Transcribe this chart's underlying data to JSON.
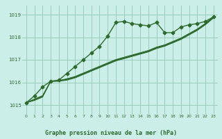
{
  "title": "Graphe pression niveau de la mer (hPa)",
  "bg_color": "#cceee8",
  "grid_color": "#99ccbb",
  "line_color": "#2d6a2d",
  "xlim": [
    -0.5,
    23.5
  ],
  "ylim": [
    1014.6,
    1019.4
  ],
  "yticks": [
    1015,
    1016,
    1017,
    1018,
    1019
  ],
  "xticks": [
    0,
    1,
    2,
    3,
    4,
    5,
    6,
    7,
    8,
    9,
    10,
    11,
    12,
    13,
    14,
    15,
    16,
    17,
    18,
    19,
    20,
    21,
    22,
    23
  ],
  "series": [
    {
      "x": [
        0,
        1,
        2,
        3,
        4,
        5,
        6,
        7,
        8,
        9,
        10,
        11,
        12,
        13,
        14,
        15,
        16,
        17,
        18,
        19,
        20,
        21,
        22,
        23
      ],
      "y": [
        1015.1,
        1015.4,
        1015.8,
        1016.05,
        1016.1,
        1016.4,
        1016.7,
        1017.0,
        1017.3,
        1017.6,
        1018.05,
        1018.65,
        1018.7,
        1018.6,
        1018.55,
        1018.5,
        1018.65,
        1018.2,
        1018.2,
        1018.45,
        1018.55,
        1018.6,
        1018.7,
        1018.9
      ],
      "marker": "D",
      "markersize": 2.5,
      "linewidth": 1.0,
      "zorder": 5
    },
    {
      "x": [
        0,
        1,
        2,
        3,
        4,
        5,
        6,
        7,
        8,
        9,
        10,
        11,
        12,
        13,
        14,
        15,
        16,
        17,
        18,
        19,
        20,
        21,
        22,
        23
      ],
      "y": [
        1015.1,
        1015.2,
        1015.35,
        1016.05,
        1016.05,
        1016.1,
        1016.2,
        1016.35,
        1016.5,
        1016.65,
        1016.8,
        1016.95,
        1017.05,
        1017.15,
        1017.25,
        1017.35,
        1017.5,
        1017.6,
        1017.75,
        1017.9,
        1018.1,
        1018.3,
        1018.55,
        1018.85
      ],
      "marker": null,
      "linewidth": 0.8,
      "zorder": 3
    },
    {
      "x": [
        0,
        1,
        2,
        3,
        4,
        5,
        6,
        7,
        8,
        9,
        10,
        11,
        12,
        13,
        14,
        15,
        16,
        17,
        18,
        19,
        20,
        21,
        22,
        23
      ],
      "y": [
        1015.1,
        1015.22,
        1015.37,
        1016.05,
        1016.06,
        1016.12,
        1016.22,
        1016.37,
        1016.52,
        1016.67,
        1016.82,
        1016.97,
        1017.07,
        1017.17,
        1017.27,
        1017.37,
        1017.52,
        1017.62,
        1017.77,
        1017.92,
        1018.12,
        1018.32,
        1018.57,
        1018.87
      ],
      "marker": null,
      "linewidth": 0.8,
      "zorder": 3
    },
    {
      "x": [
        0,
        1,
        2,
        3,
        4,
        5,
        6,
        7,
        8,
        9,
        10,
        11,
        12,
        13,
        14,
        15,
        16,
        17,
        18,
        19,
        20,
        21,
        22,
        23
      ],
      "y": [
        1015.1,
        1015.24,
        1015.39,
        1016.05,
        1016.07,
        1016.14,
        1016.24,
        1016.39,
        1016.54,
        1016.69,
        1016.84,
        1016.99,
        1017.09,
        1017.19,
        1017.29,
        1017.39,
        1017.54,
        1017.64,
        1017.79,
        1017.94,
        1018.14,
        1018.34,
        1018.59,
        1018.89
      ],
      "marker": null,
      "linewidth": 0.8,
      "zorder": 3
    },
    {
      "x": [
        0,
        1,
        2,
        3,
        4,
        5,
        6,
        7,
        8,
        9,
        10,
        11,
        12,
        13,
        14,
        15,
        16,
        17,
        18,
        19,
        20,
        21,
        22,
        23
      ],
      "y": [
        1015.1,
        1015.26,
        1015.41,
        1016.05,
        1016.08,
        1016.16,
        1016.26,
        1016.41,
        1016.56,
        1016.71,
        1016.86,
        1017.01,
        1017.11,
        1017.21,
        1017.31,
        1017.41,
        1017.56,
        1017.66,
        1017.81,
        1017.96,
        1018.16,
        1018.36,
        1018.61,
        1018.91
      ],
      "marker": null,
      "linewidth": 0.8,
      "zorder": 3
    }
  ]
}
